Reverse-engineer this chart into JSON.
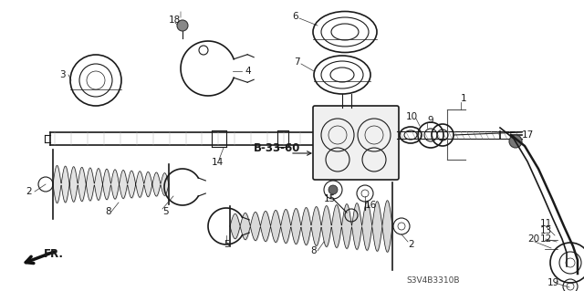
{
  "bg_color": "#ffffff",
  "line_color": "#1a1a1a",
  "label_color": "#1a1a1a",
  "diagram_code": "S3V4B3310B",
  "label_B3360": "B-33-60",
  "label_FR": "FR.",
  "font_size_labels": 7.5,
  "font_size_code": 6.5,
  "font_size_b3360": 8.5,
  "figw": 6.4,
  "figh": 3.19,
  "dpi": 100
}
